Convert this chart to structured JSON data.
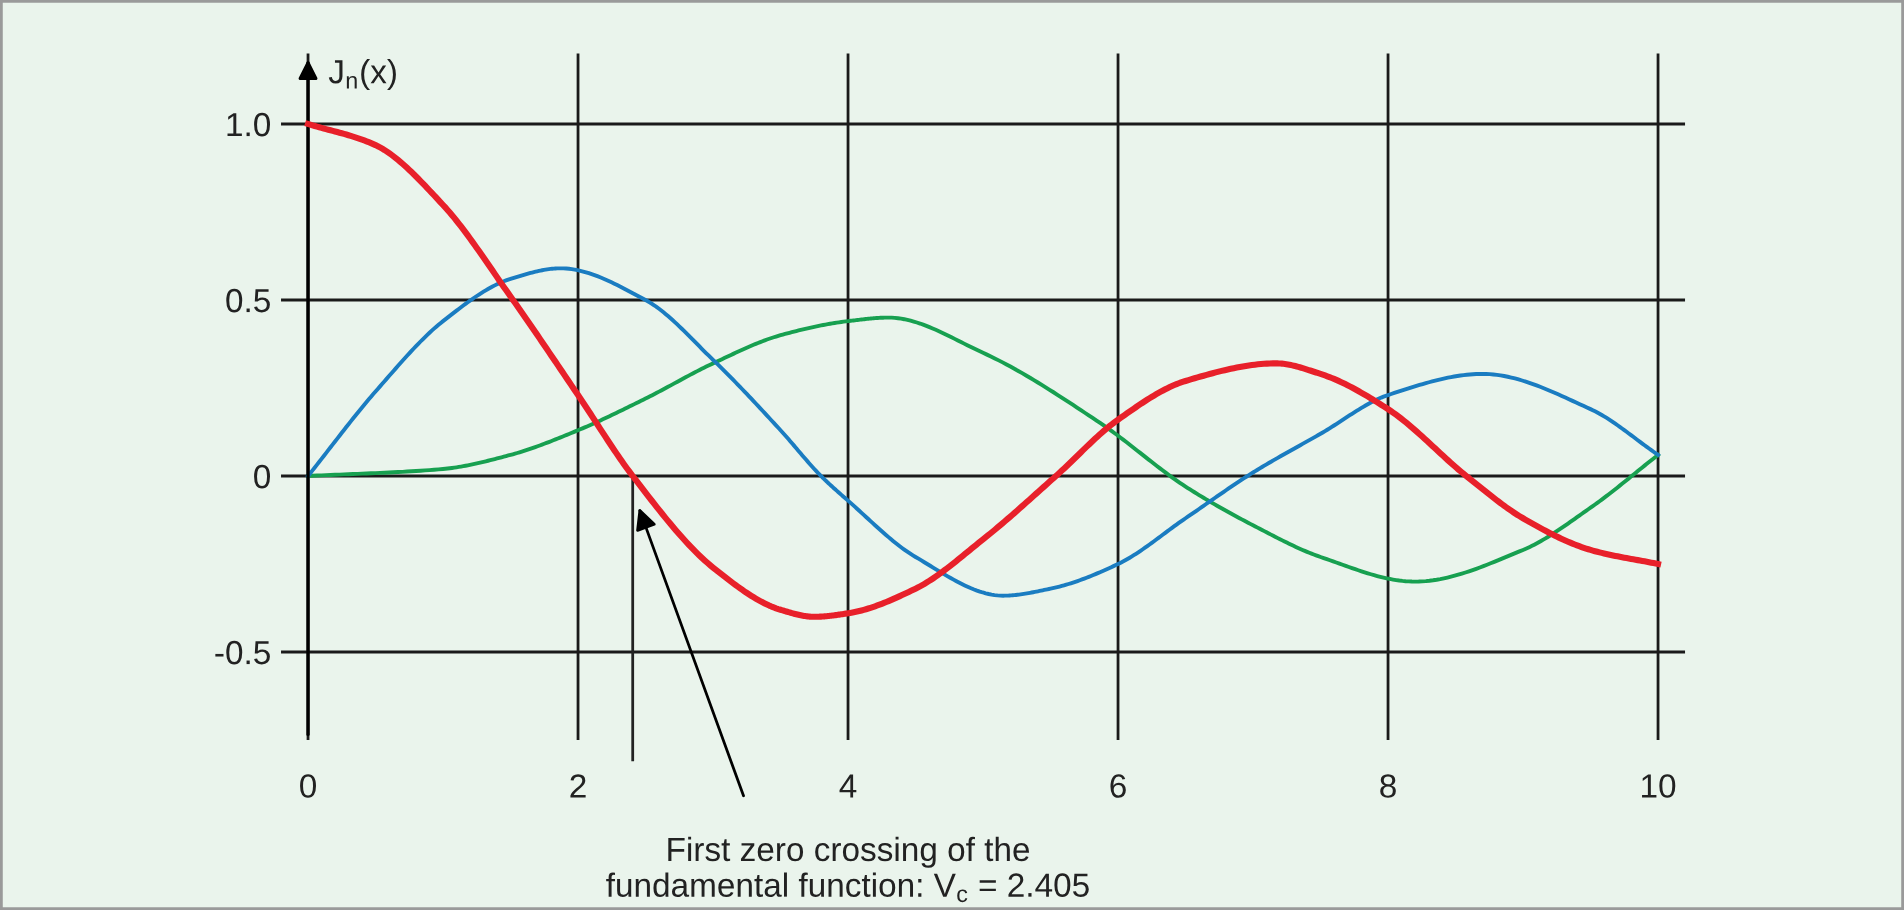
{
  "chart_data": {
    "type": "line",
    "ylabel": "J$_{n}$(x)",
    "xlim": [
      -0.2,
      10.2
    ],
    "ylim": [
      -0.75,
      1.2
    ],
    "xticks": [
      0,
      2,
      4,
      6,
      8,
      10
    ],
    "yticks": [
      {
        "value": 1.0,
        "label": "1.0"
      },
      {
        "value": 0.5,
        "label": "0.5"
      },
      0,
      -0.5
    ],
    "grid": true,
    "marker": "none",
    "line_style": "solid",
    "series": [
      {
        "color": "#e8202a",
        "x": [
          0,
          0.5,
          1,
          1.5,
          2,
          2.405,
          3,
          3.5,
          3.75,
          4,
          4.5,
          5,
          5.54,
          6,
          6.5,
          7.17,
          7.5,
          8,
          8.58,
          9,
          9.5,
          10
        ],
        "values": [
          1,
          0.94,
          0.77,
          0.51,
          0.23,
          0,
          -0.26,
          -0.38,
          -0.4,
          -0.39,
          -0.32,
          -0.18,
          0,
          0.16,
          0.27,
          0.32,
          0.29,
          0.19,
          0,
          -0.12,
          -0.21,
          -0.25
        ]
      },
      {
        "color": "#1a7cc1",
        "x": [
          0,
          0.5,
          1,
          1.5,
          1.87,
          2.5,
          3,
          3.5,
          3.8,
          4,
          4.5,
          5.15,
          5.5,
          6,
          6.5,
          7,
          7.5,
          8,
          8.7,
          9.5,
          10
        ],
        "values": [
          0,
          0.24,
          0.44,
          0.56,
          0.59,
          0.5,
          0.33,
          0.13,
          0,
          -0.07,
          -0.23,
          -0.34,
          -0.32,
          -0.25,
          -0.12,
          0.01,
          0.12,
          0.23,
          0.29,
          0.19,
          0.06
        ]
      },
      {
        "color": "#17a050",
        "x": [
          0,
          1,
          1.5,
          2,
          2.5,
          3,
          3.5,
          4,
          4.3,
          5,
          5.87,
          6.5,
          7,
          7.5,
          8.2,
          9,
          9.5,
          10
        ],
        "values": [
          0,
          0.02,
          0.06,
          0.13,
          0.22,
          0.32,
          0.4,
          0.44,
          0.45,
          0.35,
          0.15,
          -0.03,
          -0.14,
          -0.23,
          -0.3,
          -0.21,
          -0.09,
          0.06
        ]
      }
    ],
    "ref_lines": [
      {
        "axis": "x",
        "value": 2.405,
        "color": "#222222"
      }
    ],
    "annotations": [
      {
        "text": "First zero crossing of the\nfundamental function: V$_{c}$ = 2.405",
        "x": 2.45,
        "y": -0.09
      }
    ]
  }
}
